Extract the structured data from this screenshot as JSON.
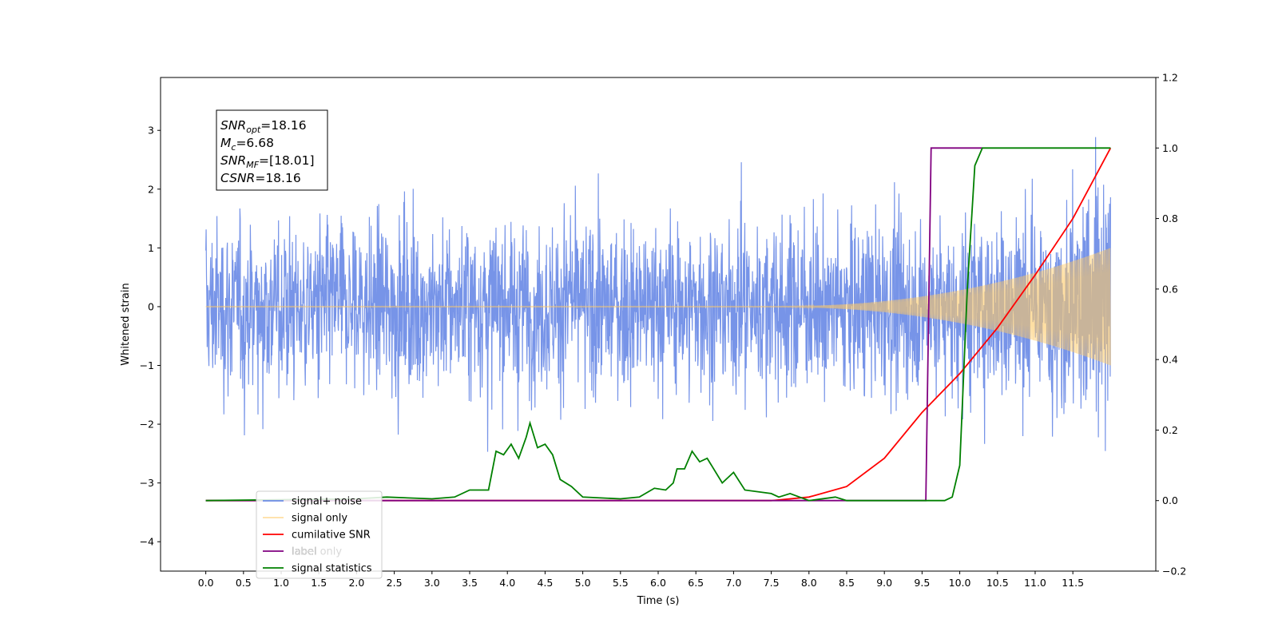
{
  "chart_data": {
    "type": "line",
    "xlabel": "Time (s)",
    "ylabel": "Whitened strain",
    "xlim": [
      -0.6,
      12.6
    ],
    "ylim": [
      -4.5,
      3.9
    ],
    "y2lim": [
      -0.2,
      1.2
    ],
    "x_ticks": [
      "0.0",
      "0.5",
      "1.0",
      "1.5",
      "2.0",
      "2.5",
      "3.0",
      "3.5",
      "4.0",
      "4.5",
      "5.0",
      "5.5",
      "6.0",
      "6.5",
      "7.0",
      "7.5",
      "8.0",
      "8.5",
      "9.0",
      "9.5",
      "10.0",
      "10.5",
      "11.0",
      "11.5"
    ],
    "y_ticks": [
      "3",
      "2",
      "1",
      "0",
      "−1",
      "−2",
      "−3",
      "−4"
    ],
    "y2_ticks": [
      "1.2",
      "1.0",
      "0.8",
      "0.6",
      "0.4",
      "0.2",
      "0.0",
      "−0.2"
    ],
    "duration_s": 12.0,
    "noise_std": 0.72,
    "signal_onset_s": 7.5,
    "signal_peak_amplitude": 1.0,
    "annotation_lines": [
      {
        "key": "SNR",
        "sub": "opt",
        "value": "=18.16"
      },
      {
        "key": "M",
        "sub": "c",
        "value": "=6.68"
      },
      {
        "key": "SNR",
        "sub": "MF",
        "value": "=[18.01]"
      },
      {
        "key": "CSNR",
        "sub": "",
        "value": "=18.16"
      }
    ],
    "series": [
      {
        "name": "signal+ noise",
        "color": "#6b8be6",
        "axis": "left"
      },
      {
        "name": "signal only",
        "color": "#ffc966",
        "axis": "left"
      },
      {
        "name": "cumilative SNR",
        "color": "#ff0000",
        "axis": "right",
        "points": [
          [
            0,
            0
          ],
          [
            7.5,
            0
          ],
          [
            8.0,
            0.01
          ],
          [
            8.5,
            0.04
          ],
          [
            9.0,
            0.12
          ],
          [
            9.5,
            0.25
          ],
          [
            10.0,
            0.36
          ],
          [
            10.5,
            0.49
          ],
          [
            11.0,
            0.64
          ],
          [
            11.5,
            0.8
          ],
          [
            12.0,
            1.0
          ]
        ]
      },
      {
        "name": "label",
        "color": "#800080",
        "axis": "right",
        "points": [
          [
            0,
            0
          ],
          [
            9.55,
            0
          ],
          [
            9.62,
            1.0
          ],
          [
            10.3,
            1.0
          ]
        ]
      },
      {
        "name": "label only",
        "color": "#800080",
        "axis": "right"
      },
      {
        "name": "signal statistics",
        "color": "#008000",
        "axis": "right",
        "points": [
          [
            0,
            0
          ],
          [
            2.0,
            0.005
          ],
          [
            2.4,
            0.01
          ],
          [
            3.0,
            0.005
          ],
          [
            3.3,
            0.01
          ],
          [
            3.5,
            0.03
          ],
          [
            3.75,
            0.03
          ],
          [
            3.85,
            0.14
          ],
          [
            3.95,
            0.13
          ],
          [
            4.05,
            0.16
          ],
          [
            4.15,
            0.12
          ],
          [
            4.25,
            0.18
          ],
          [
            4.3,
            0.22
          ],
          [
            4.4,
            0.15
          ],
          [
            4.5,
            0.16
          ],
          [
            4.6,
            0.13
          ],
          [
            4.7,
            0.06
          ],
          [
            4.85,
            0.04
          ],
          [
            5.0,
            0.01
          ],
          [
            5.5,
            0.005
          ],
          [
            5.75,
            0.01
          ],
          [
            5.95,
            0.035
          ],
          [
            6.1,
            0.03
          ],
          [
            6.2,
            0.05
          ],
          [
            6.25,
            0.09
          ],
          [
            6.35,
            0.09
          ],
          [
            6.45,
            0.14
          ],
          [
            6.55,
            0.11
          ],
          [
            6.65,
            0.12
          ],
          [
            6.85,
            0.05
          ],
          [
            7.0,
            0.08
          ],
          [
            7.15,
            0.03
          ],
          [
            7.5,
            0.02
          ],
          [
            7.6,
            0.01
          ],
          [
            7.75,
            0.02
          ],
          [
            8.0,
            0.0
          ],
          [
            8.35,
            0.01
          ],
          [
            8.5,
            0.0
          ],
          [
            9.5,
            0.0
          ],
          [
            9.8,
            0.0
          ],
          [
            9.9,
            0.01
          ],
          [
            10.0,
            0.1
          ],
          [
            10.1,
            0.6
          ],
          [
            10.2,
            0.95
          ],
          [
            10.3,
            1.0
          ],
          [
            12.0,
            1.0
          ]
        ]
      }
    ],
    "legend": {
      "placement": "lower-left"
    }
  }
}
